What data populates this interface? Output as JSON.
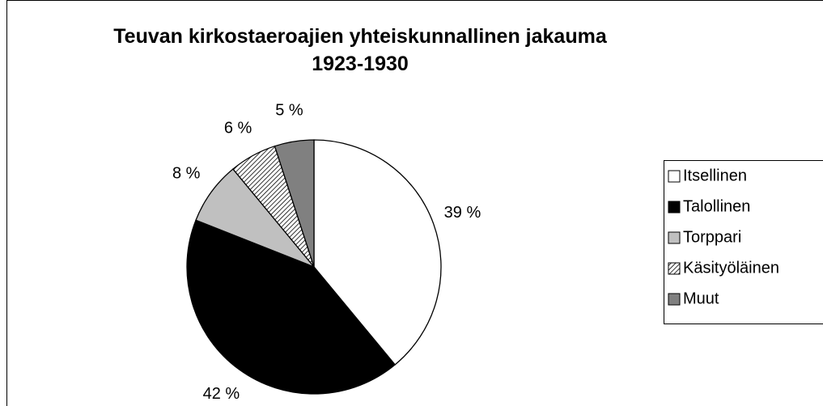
{
  "chart_data": {
    "type": "pie",
    "title": "Teuvan kirkostaeroajien yhteiskunnallinen jakauma 1923-1930",
    "categories": [
      "Itsellinen",
      "Talollinen",
      "Torppari",
      "Käsityöläinen",
      "Muut"
    ],
    "values": [
      39,
      42,
      8,
      6,
      5
    ],
    "value_labels": [
      "39 %",
      "42 %",
      "8 %",
      "6 %",
      "5 %"
    ],
    "colors": [
      "#ffffff",
      "#000000",
      "#c0c0c0",
      "#ffffff",
      "#808080"
    ],
    "hatched": [
      false,
      false,
      false,
      true,
      false
    ],
    "legend": "right"
  }
}
